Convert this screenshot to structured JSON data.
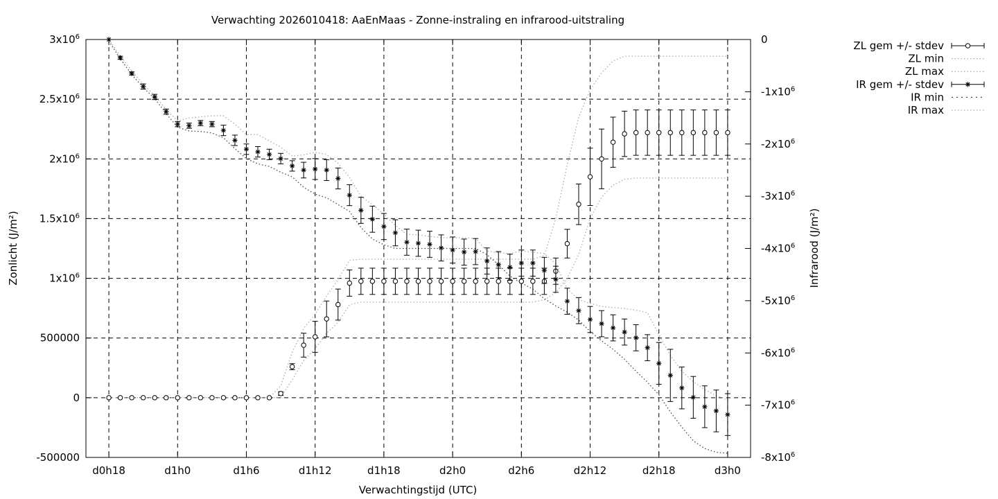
{
  "chart_data": {
    "type": "scatter",
    "title": "Verwachting 2026010418: AaEnMaas - Zonne-instraling en infrarood-uitstraling",
    "xlabel": "Verwachtingstijd (UTC)",
    "ylabel_left": "Zonlicht (J/m²)",
    "ylabel_right": "Infrarood (J/m²)",
    "x_range_hours": [
      16,
      74
    ],
    "ylim_left": [
      -500000,
      3000000
    ],
    "ylim_right": [
      -8000000,
      0
    ],
    "grid": true,
    "legend_position": "top-right-outside",
    "x_ticks": [
      {
        "x": 18,
        "label": "d0h18"
      },
      {
        "x": 24,
        "label": "d1h0"
      },
      {
        "x": 30,
        "label": "d1h6"
      },
      {
        "x": 36,
        "label": "d1h12"
      },
      {
        "x": 42,
        "label": "d1h18"
      },
      {
        "x": 48,
        "label": "d2h0"
      },
      {
        "x": 54,
        "label": "d2h6"
      },
      {
        "x": 60,
        "label": "d2h12"
      },
      {
        "x": 66,
        "label": "d2h18"
      },
      {
        "x": 72,
        "label": "d3h0"
      }
    ],
    "y_ticks_left": [
      {
        "v": 3000000,
        "base": "3x10",
        "exp": "6",
        "label": ""
      },
      {
        "v": 2500000,
        "base": "2.5x10",
        "exp": "6",
        "label": ""
      },
      {
        "v": 2000000,
        "base": "2x10",
        "exp": "6",
        "label": ""
      },
      {
        "v": 1500000,
        "base": "1.5x10",
        "exp": "6",
        "label": ""
      },
      {
        "v": 1000000,
        "base": "1x10",
        "exp": "6",
        "label": ""
      },
      {
        "v": 500000,
        "base": "",
        "exp": "",
        "label": "500000"
      },
      {
        "v": 0,
        "base": "",
        "exp": "",
        "label": "0"
      },
      {
        "v": -500000,
        "base": "",
        "exp": "",
        "label": "-500000"
      }
    ],
    "y_ticks_right": [
      {
        "v": 0,
        "base": "",
        "exp": "",
        "label": "0"
      },
      {
        "v": -1000000,
        "base": "-1x10",
        "exp": "6",
        "label": ""
      },
      {
        "v": -2000000,
        "base": "-2x10",
        "exp": "6",
        "label": ""
      },
      {
        "v": -3000000,
        "base": "-3x10",
        "exp": "6",
        "label": ""
      },
      {
        "v": -4000000,
        "base": "-4x10",
        "exp": "6",
        "label": ""
      },
      {
        "v": -5000000,
        "base": "-5x10",
        "exp": "6",
        "label": ""
      },
      {
        "v": -6000000,
        "base": "-6x10",
        "exp": "6",
        "label": ""
      },
      {
        "v": -7000000,
        "base": "-7x10",
        "exp": "6",
        "label": ""
      },
      {
        "v": -8000000,
        "base": "-8x10",
        "exp": "6",
        "label": ""
      }
    ],
    "legend": [
      {
        "label": "ZL gem +/- stdev",
        "style": "zl-err"
      },
      {
        "label": "ZL min",
        "style": "dotted-light"
      },
      {
        "label": "ZL max",
        "style": "dotted-light"
      },
      {
        "label": "IR gem +/- stdev",
        "style": "ir-err"
      },
      {
        "label": "IR min",
        "style": "dotted-dark"
      },
      {
        "label": "IR max",
        "style": "dotted-light"
      }
    ],
    "x": [
      18,
      19,
      20,
      21,
      22,
      23,
      24,
      25,
      26,
      27,
      28,
      29,
      30,
      31,
      32,
      33,
      34,
      35,
      36,
      37,
      38,
      39,
      40,
      41,
      42,
      43,
      44,
      45,
      46,
      47,
      48,
      49,
      50,
      51,
      52,
      53,
      54,
      55,
      56,
      57,
      58,
      59,
      60,
      61,
      62,
      63,
      64,
      65,
      66,
      67,
      68,
      69,
      70,
      71,
      72
    ],
    "zl": {
      "mean": [
        0,
        0,
        0,
        0,
        0,
        0,
        0,
        0,
        0,
        0,
        0,
        0,
        0,
        0,
        0,
        35000,
        260000,
        440000,
        510000,
        660000,
        780000,
        960000,
        975000,
        975000,
        975000,
        975000,
        975000,
        975000,
        975000,
        975000,
        975000,
        975000,
        975000,
        975000,
        975000,
        975000,
        975000,
        975000,
        975000,
        1060000,
        1290000,
        1620000,
        1850000,
        2000000,
        2140000,
        2210000,
        2220000,
        2220000,
        2220000,
        2220000,
        2220000,
        2220000,
        2220000,
        2220000,
        2220000
      ],
      "stdev": [
        0,
        0,
        0,
        0,
        0,
        0,
        0,
        0,
        0,
        0,
        0,
        0,
        0,
        0,
        0,
        15000,
        25000,
        100000,
        130000,
        150000,
        130000,
        110000,
        110000,
        110000,
        110000,
        110000,
        110000,
        110000,
        110000,
        110000,
        110000,
        110000,
        110000,
        110000,
        110000,
        110000,
        110000,
        110000,
        110000,
        110000,
        120000,
        170000,
        240000,
        250000,
        210000,
        190000,
        190000,
        190000,
        190000,
        190000,
        190000,
        190000,
        190000,
        190000,
        190000
      ],
      "min": [
        0,
        0,
        0,
        0,
        0,
        0,
        0,
        0,
        0,
        0,
        0,
        0,
        0,
        0,
        0,
        0,
        150000,
        310000,
        410000,
        540000,
        630000,
        780000,
        800000,
        800000,
        800000,
        800000,
        800000,
        800000,
        800000,
        800000,
        800000,
        800000,
        800000,
        800000,
        800000,
        800000,
        800000,
        800000,
        820000,
        880000,
        1000000,
        1200000,
        1500000,
        1680000,
        1780000,
        1830000,
        1840000,
        1840000,
        1840000,
        1840000,
        1840000,
        1840000,
        1840000,
        1840000,
        1840000
      ],
      "max": [
        0,
        0,
        0,
        0,
        0,
        0,
        0,
        0,
        0,
        0,
        0,
        0,
        0,
        0,
        0,
        100000,
        380000,
        580000,
        700000,
        850000,
        990000,
        1150000,
        1160000,
        1160000,
        1160000,
        1160000,
        1160000,
        1160000,
        1160000,
        1160000,
        1160000,
        1160000,
        1160000,
        1160000,
        1160000,
        1160000,
        1160000,
        1160000,
        1190000,
        1500000,
        1950000,
        2350000,
        2580000,
        2720000,
        2820000,
        2860000,
        2860000,
        2860000,
        2860000,
        2860000,
        2860000,
        2860000,
        2860000,
        2860000,
        2860000
      ]
    },
    "ir": {
      "mean": [
        0,
        -350000,
        -650000,
        -900000,
        -1100000,
        -1380000,
        -1620000,
        -1650000,
        -1600000,
        -1620000,
        -1740000,
        -1930000,
        -2100000,
        -2150000,
        -2200000,
        -2280000,
        -2420000,
        -2500000,
        -2480000,
        -2500000,
        -2660000,
        -2980000,
        -3270000,
        -3440000,
        -3580000,
        -3700000,
        -3880000,
        -3900000,
        -3920000,
        -3990000,
        -4030000,
        -4070000,
        -4060000,
        -4240000,
        -4310000,
        -4360000,
        -4280000,
        -4280000,
        -4420000,
        -4590000,
        -5010000,
        -5190000,
        -5360000,
        -5440000,
        -5520000,
        -5600000,
        -5710000,
        -5900000,
        -6200000,
        -6430000,
        -6670000,
        -6850000,
        -7030000,
        -7110000,
        -7180000
      ],
      "stdev": [
        0,
        30000,
        30000,
        50000,
        50000,
        50000,
        50000,
        50000,
        50000,
        50000,
        100000,
        100000,
        100000,
        100000,
        100000,
        100000,
        100000,
        150000,
        200000,
        200000,
        200000,
        200000,
        250000,
        250000,
        250000,
        250000,
        250000,
        250000,
        250000,
        250000,
        250000,
        250000,
        250000,
        250000,
        250000,
        250000,
        250000,
        250000,
        250000,
        250000,
        250000,
        250000,
        250000,
        250000,
        250000,
        250000,
        250000,
        250000,
        400000,
        500000,
        400000,
        400000,
        400000,
        400000,
        400000
      ],
      "min": [
        -30000,
        -370000,
        -670000,
        -920000,
        -1130000,
        -1420000,
        -1680000,
        -1750000,
        -1760000,
        -1790000,
        -1880000,
        -2090000,
        -2280000,
        -2380000,
        -2430000,
        -2540000,
        -2630000,
        -2830000,
        -2960000,
        -3030000,
        -3160000,
        -3290000,
        -3600000,
        -3820000,
        -3930000,
        -4000000,
        -4000000,
        -4000000,
        -4000000,
        -4000000,
        -4000000,
        -4000000,
        -4000000,
        -4120000,
        -4310000,
        -4530000,
        -4660000,
        -4780000,
        -4960000,
        -5100000,
        -5220000,
        -5370000,
        -5590000,
        -5770000,
        -5930000,
        -6120000,
        -6350000,
        -6560000,
        -6800000,
        -7130000,
        -7420000,
        -7680000,
        -7830000,
        -7900000,
        -7920000
      ],
      "max": [
        0,
        -320000,
        -600000,
        -860000,
        -1070000,
        -1340000,
        -1560000,
        -1500000,
        -1480000,
        -1460000,
        -1460000,
        -1620000,
        -1820000,
        -1820000,
        -1940000,
        -2060000,
        -2230000,
        -2210000,
        -2160000,
        -2200000,
        -2370000,
        -2640000,
        -3000000,
        -3160000,
        -3340000,
        -3560000,
        -3730000,
        -3740000,
        -3770000,
        -3790000,
        -3800000,
        -3790000,
        -3810000,
        -4050000,
        -4080000,
        -4100000,
        -4050000,
        -4070000,
        -4100000,
        -4290000,
        -4770000,
        -4980000,
        -5050000,
        -5110000,
        -5130000,
        -5150000,
        -5180000,
        -5230000,
        -5650000,
        -6050000,
        -6350000,
        -6550000,
        -6700000,
        -6820000,
        -6900000
      ]
    }
  }
}
